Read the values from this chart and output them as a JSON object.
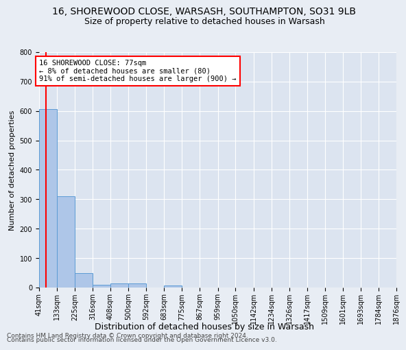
{
  "title1": "16, SHOREWOOD CLOSE, WARSASH, SOUTHAMPTON, SO31 9LB",
  "title2": "Size of property relative to detached houses in Warsash",
  "xlabel": "Distribution of detached houses by size in Warsash",
  "ylabel": "Number of detached properties",
  "footnote1": "Contains HM Land Registry data © Crown copyright and database right 2024.",
  "footnote2": "Contains public sector information licensed under the Open Government Licence v3.0.",
  "bin_edges": [
    41,
    133,
    225,
    316,
    408,
    500,
    592,
    683,
    775,
    867,
    959,
    1050,
    1142,
    1234,
    1326,
    1417,
    1509,
    1601,
    1693,
    1784,
    1876
  ],
  "bar_heights": [
    607,
    310,
    50,
    10,
    13,
    13,
    0,
    8,
    0,
    0,
    0,
    0,
    0,
    0,
    0,
    0,
    0,
    0,
    0,
    0
  ],
  "bar_color": "#aec6e8",
  "bar_edge_color": "#5b9bd5",
  "red_line_x": 77,
  "annotation_line1": "16 SHOREWOOD CLOSE: 77sqm",
  "annotation_line2": "← 8% of detached houses are smaller (80)",
  "annotation_line3": "91% of semi-detached houses are larger (900) →",
  "annotation_box_color": "white",
  "annotation_box_edge_color": "red",
  "red_line_color": "red",
  "ylim": [
    0,
    800
  ],
  "yticks": [
    0,
    100,
    200,
    300,
    400,
    500,
    600,
    700,
    800
  ],
  "background_color": "#e8edf4",
  "plot_background_color": "#dce4f0",
  "grid_color": "white",
  "title1_fontsize": 10,
  "title2_fontsize": 9,
  "xlabel_fontsize": 9,
  "ylabel_fontsize": 8,
  "tick_fontsize": 7,
  "annotation_fontsize": 7.5,
  "footnote_fontsize": 6.5
}
